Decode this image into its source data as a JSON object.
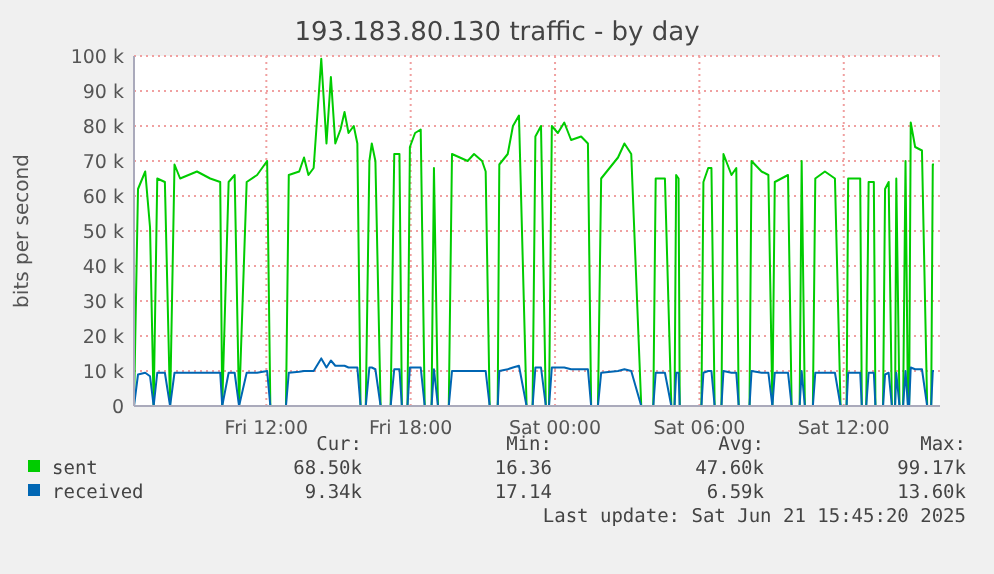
{
  "chart_data": {
    "type": "line",
    "title": "193.183.80.130 traffic - by day",
    "ylabel": "bits per second",
    "x": [
      "2025-06-20T06:30",
      "2025-06-20T06:40",
      "2025-06-20T06:58",
      "2025-06-20T07:10",
      "2025-06-20T07:19",
      "2025-06-20T07:28",
      "2025-06-20T07:47",
      "2025-06-20T08:00",
      "2025-06-20T08:11",
      "2025-06-20T08:25",
      "2025-06-20T09:07",
      "2025-06-20T09:40",
      "2025-06-20T10:05",
      "2025-06-20T10:10",
      "2025-06-20T10:26",
      "2025-06-20T10:41",
      "2025-06-20T10:52",
      "2025-06-20T11:11",
      "2025-06-20T11:37",
      "2025-06-20T12:02",
      "2025-06-20T12:10",
      "2025-06-20T12:49",
      "2025-06-20T12:56",
      "2025-06-20T13:22",
      "2025-06-20T13:34",
      "2025-06-20T13:45",
      "2025-06-20T13:58",
      "2025-06-20T14:17",
      "2025-06-20T14:30",
      "2025-06-20T14:41",
      "2025-06-20T14:52",
      "2025-06-20T15:05",
      "2025-06-20T15:15",
      "2025-06-20T15:25",
      "2025-06-20T15:38",
      "2025-06-20T15:47",
      "2025-06-20T15:55",
      "2025-06-20T16:08",
      "2025-06-20T16:17",
      "2025-06-20T16:23",
      "2025-06-20T16:32",
      "2025-06-20T16:45",
      "2025-06-20T17:10",
      "2025-06-20T17:19",
      "2025-06-20T17:32",
      "2025-06-20T17:38",
      "2025-06-20T17:52",
      "2025-06-20T17:58",
      "2025-06-20T18:11",
      "2025-06-20T18:25",
      "2025-06-20T18:35",
      "2025-06-20T18:52",
      "2025-06-20T18:58",
      "2025-06-20T19:08",
      "2025-06-20T19:35",
      "2025-06-20T19:43",
      "2025-06-20T20:22",
      "2025-06-20T20:38",
      "2025-06-20T20:58",
      "2025-06-20T21:07",
      "2025-06-20T21:17",
      "2025-06-20T21:37",
      "2025-06-20T21:41",
      "2025-06-20T22:02",
      "2025-06-20T22:15",
      "2025-06-20T22:30",
      "2025-06-20T22:49",
      "2025-06-20T23:04",
      "2025-06-20T23:11",
      "2025-06-20T23:25",
      "2025-06-20T23:37",
      "2025-06-20T23:45",
      "2025-06-20T23:52",
      "2025-06-21T00:07",
      "2025-06-21T00:23",
      "2025-06-21T00:40",
      "2025-06-21T01:05",
      "2025-06-21T01:22",
      "2025-06-21T01:30",
      "2025-06-21T01:47",
      "2025-06-21T01:55",
      "2025-06-21T02:37",
      "2025-06-21T02:53",
      "2025-06-21T03:10",
      "2025-06-21T03:35",
      "2025-06-21T04:05",
      "2025-06-21T04:11",
      "2025-06-21T04:34",
      "2025-06-21T04:50",
      "2025-06-21T04:58",
      "2025-06-21T05:02",
      "2025-06-21T05:08",
      "2025-06-21T05:11",
      "2025-06-21T06:05",
      "2025-06-21T06:10",
      "2025-06-21T06:22",
      "2025-06-21T06:30",
      "2025-06-21T06:38",
      "2025-06-21T06:55",
      "2025-06-21T07:00",
      "2025-06-21T07:20",
      "2025-06-21T07:32",
      "2025-06-21T07:38",
      "2025-06-21T08:05",
      "2025-06-21T08:10",
      "2025-06-21T08:35",
      "2025-06-21T08:52",
      "2025-06-21T09:02",
      "2025-06-21T09:08",
      "2025-06-21T09:41",
      "2025-06-21T09:50",
      "2025-06-21T10:10",
      "2025-06-21T10:15",
      "2025-06-21T10:23",
      "2025-06-21T10:43",
      "2025-06-21T10:49",
      "2025-06-21T11:13",
      "2025-06-21T11:38",
      "2025-06-21T11:52",
      "2025-06-21T12:07",
      "2025-06-21T12:11",
      "2025-06-21T12:41",
      "2025-06-21T12:45",
      "2025-06-21T12:56",
      "2025-06-21T13:02",
      "2025-06-21T13:15",
      "2025-06-21T13:19",
      "2025-06-21T13:38",
      "2025-06-21T13:43",
      "2025-06-21T13:52",
      "2025-06-21T14:00",
      "2025-06-21T14:08",
      "2025-06-21T14:11",
      "2025-06-21T14:19",
      "2025-06-21T14:28",
      "2025-06-21T14:34",
      "2025-06-21T14:40",
      "2025-06-21T14:43",
      "2025-06-21T14:47",
      "2025-06-21T14:58",
      "2025-06-21T15:15",
      "2025-06-21T15:28",
      "2025-06-21T15:38",
      "2025-06-21T15:42",
      "2025-06-21T15:45"
    ],
    "series": [
      {
        "name": "sent",
        "color": "#00cc00",
        "values": [
          0,
          62000,
          67000,
          51000,
          0,
          65000,
          64000,
          0,
          69000,
          65000,
          67000,
          65000,
          64000,
          0,
          64000,
          66000,
          0,
          64000,
          66000,
          70000,
          0,
          0,
          66000,
          67000,
          71000,
          66000,
          68000,
          99200,
          75000,
          94000,
          75000,
          79000,
          84000,
          78000,
          80000,
          75000,
          0,
          0,
          70000,
          75000,
          70000,
          0,
          0,
          72000,
          72000,
          0,
          0,
          74000,
          78000,
          79000,
          0,
          0,
          68000,
          0,
          0,
          72000,
          70000,
          72000,
          70000,
          67000,
          0,
          0,
          69000,
          72000,
          80000,
          83000,
          0,
          0,
          77000,
          80000,
          0,
          0,
          80000,
          78000,
          81000,
          76000,
          77000,
          75000,
          0,
          0,
          65000,
          71000,
          75000,
          72000,
          0,
          0,
          65000,
          65000,
          0,
          0,
          66000,
          65000,
          0,
          0,
          64000,
          68000,
          68000,
          0,
          0,
          72000,
          66000,
          68000,
          0,
          0,
          70000,
          67000,
          66000,
          0,
          64000,
          66000,
          0,
          0,
          70000,
          0,
          0,
          65000,
          67000,
          65000,
          0,
          0,
          65000,
          65000,
          0,
          0,
          64000,
          64000,
          0,
          0,
          62000,
          64000,
          0,
          0,
          65000,
          0,
          0,
          70000,
          0,
          0,
          81000,
          74000,
          73000,
          0,
          0,
          69000,
          69000
        ]
      },
      {
        "name": "received",
        "color": "#0066b3",
        "values": [
          0,
          9000,
          9500,
          8500,
          0,
          9500,
          9500,
          0,
          9500,
          9500,
          9500,
          9500,
          9500,
          0,
          9500,
          9500,
          0,
          9500,
          9500,
          10000,
          0,
          0,
          9500,
          9800,
          10000,
          10000,
          10000,
          13600,
          11000,
          13000,
          11500,
          11500,
          11500,
          11000,
          11000,
          11000,
          0,
          0,
          11000,
          11000,
          10500,
          0,
          0,
          10500,
          10500,
          0,
          0,
          11000,
          11000,
          11000,
          0,
          0,
          10500,
          0,
          0,
          10000,
          10000,
          10000,
          10000,
          10000,
          0,
          0,
          10000,
          10500,
          11000,
          11500,
          0,
          0,
          11000,
          11000,
          0,
          0,
          11000,
          11000,
          11000,
          10500,
          10500,
          10500,
          0,
          0,
          9500,
          10000,
          10500,
          10000,
          0,
          0,
          9500,
          9500,
          0,
          0,
          9500,
          9500,
          0,
          0,
          9500,
          10000,
          10000,
          0,
          0,
          10000,
          9500,
          9500,
          0,
          0,
          10000,
          9500,
          9500,
          0,
          9500,
          9500,
          0,
          0,
          10000,
          0,
          0,
          9500,
          9500,
          9500,
          0,
          0,
          9500,
          9500,
          0,
          0,
          9500,
          9500,
          0,
          0,
          9000,
          9500,
          0,
          0,
          9500,
          0,
          0,
          10000,
          0,
          0,
          11000,
          10500,
          10500,
          0,
          0,
          10000,
          10000
        ]
      }
    ],
    "xlim": [
      "2025-06-20T06:30",
      "2025-06-21T16:00"
    ],
    "xticks": [
      {
        "value": "2025-06-20T12:00",
        "label": "Fri 12:00"
      },
      {
        "value": "2025-06-20T18:00",
        "label": "Fri 18:00"
      },
      {
        "value": "2025-06-21T00:00",
        "label": "Sat 00:00"
      },
      {
        "value": "2025-06-21T06:00",
        "label": "Sat 06:00"
      },
      {
        "value": "2025-06-21T12:00",
        "label": "Sat 12:00"
      }
    ],
    "ylim": [
      0,
      100000
    ],
    "yticks": [
      0,
      {
        "value": 10000,
        "label": "10 k"
      },
      {
        "value": 20000,
        "label": "20 k"
      },
      {
        "value": 30000,
        "label": "30 k"
      },
      {
        "value": 40000,
        "label": "40 k"
      },
      {
        "value": 50000,
        "label": "50 k"
      },
      {
        "value": 60000,
        "label": "60 k"
      },
      {
        "value": 70000,
        "label": "70 k"
      },
      {
        "value": 80000,
        "label": "80 k"
      },
      {
        "value": 90000,
        "label": "90 k"
      },
      {
        "value": 100000,
        "label": "100 k"
      }
    ],
    "grid": true,
    "legend": "bottom",
    "annotations": [
      "Cur:",
      "Min:",
      "Avg:",
      "Max:",
      "68.50k",
      "16.36",
      "47.60k",
      "99.17k",
      "9.34k",
      "17.14",
      "6.59k",
      "13.60k",
      "Last update: Sat Jun 21 15:45:20 2025"
    ]
  }
}
